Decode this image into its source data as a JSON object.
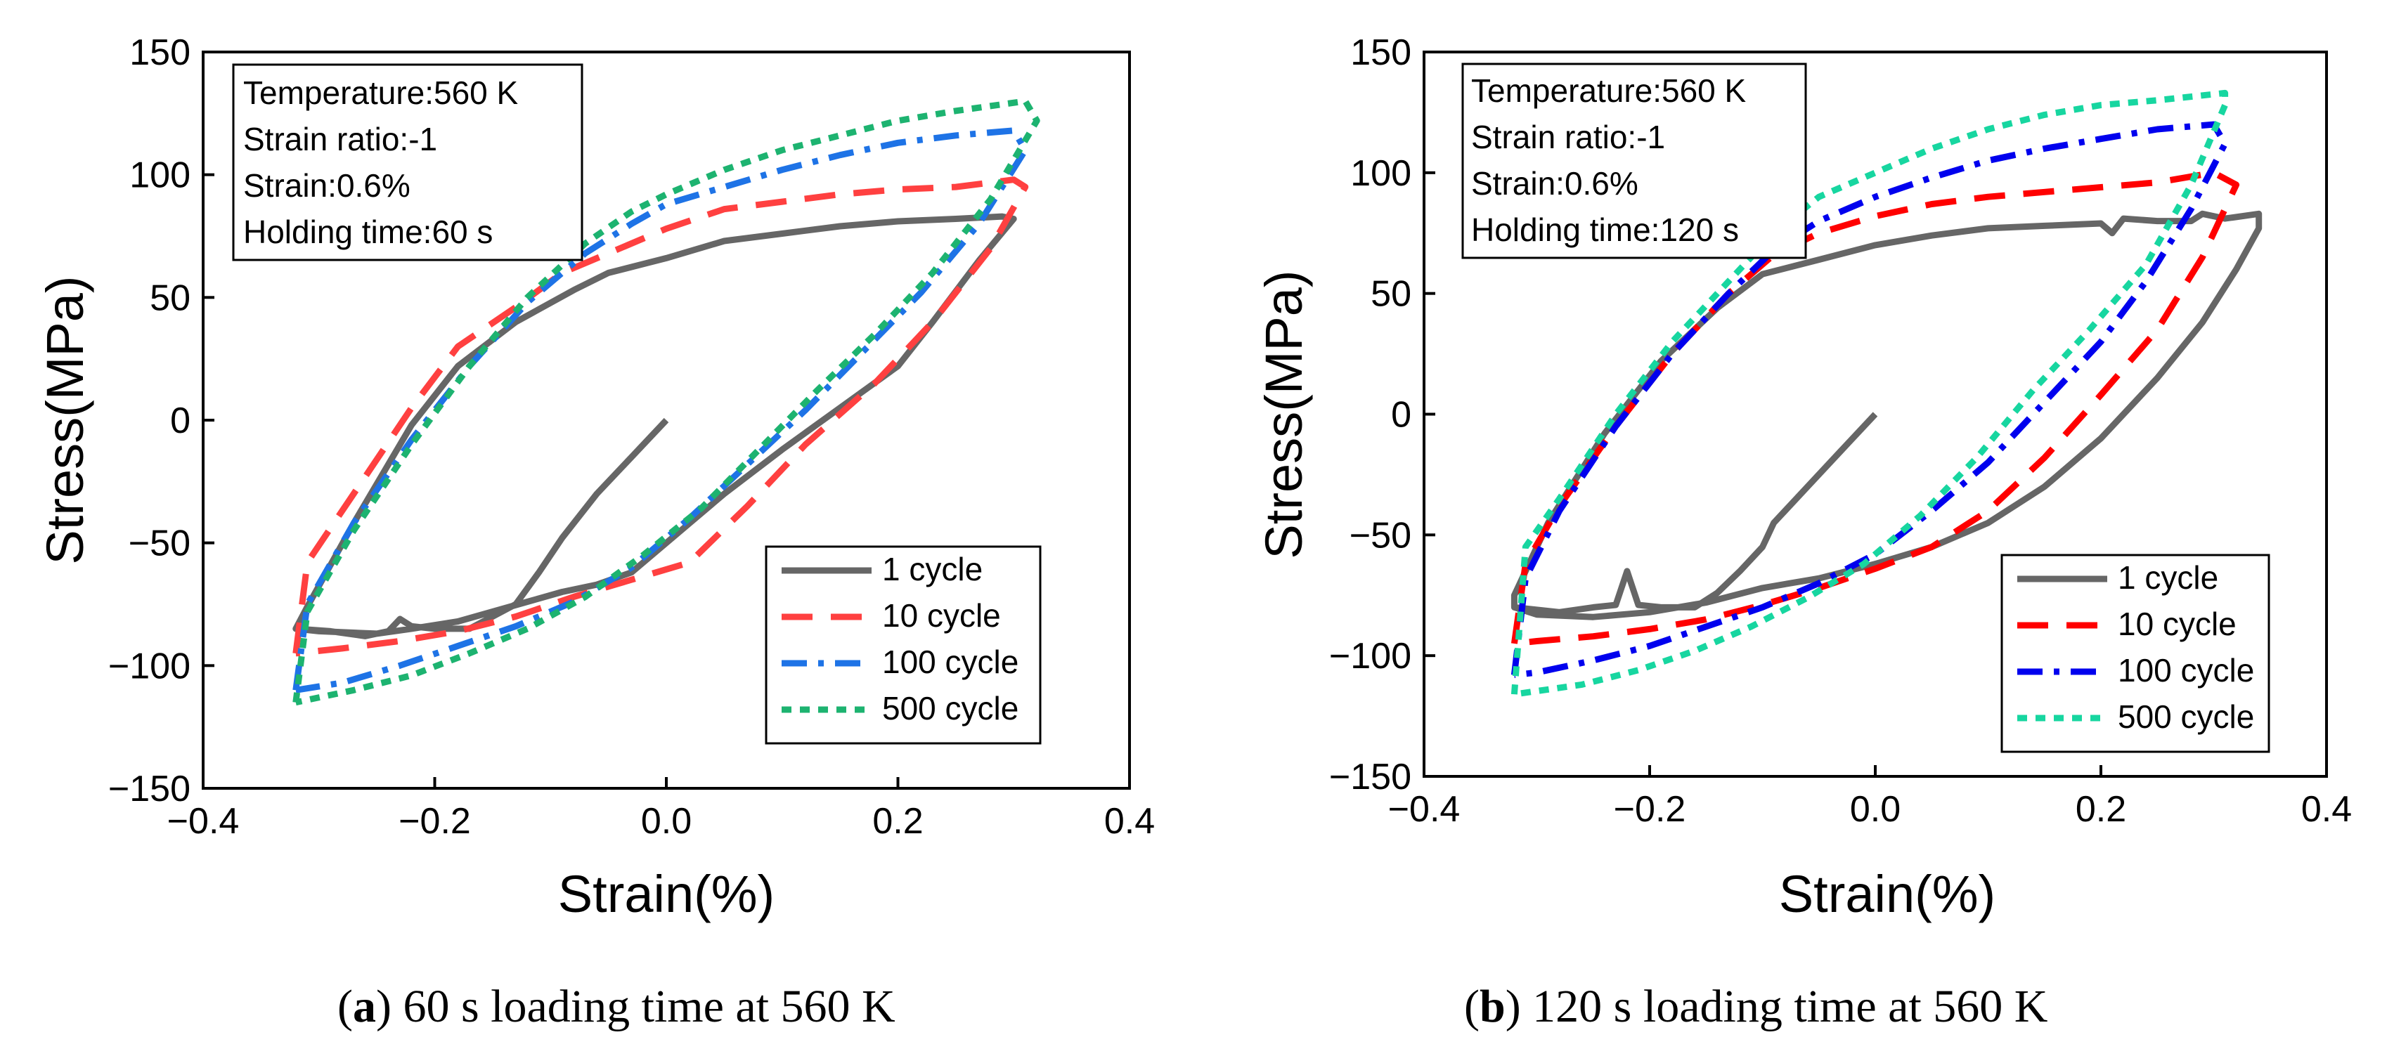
{
  "chart_data": [
    {
      "type": "line",
      "panel": "a",
      "title": "",
      "xlabel": "Strain(%)",
      "ylabel": "Stress(MPa)",
      "xlim": [
        -0.4,
        0.4
      ],
      "ylim": [
        -150,
        150
      ],
      "xticks": [
        -0.4,
        -0.2,
        0.0,
        0.2,
        0.4
      ],
      "yticks": [
        -150,
        -100,
        -50,
        0,
        50,
        100,
        150
      ],
      "xtick_labels": [
        "−0.4",
        "−0.2",
        "0.0",
        "0.2",
        "0.4"
      ],
      "ytick_labels": [
        "−150",
        "−100",
        "−50",
        "0",
        "50",
        "100",
        "150"
      ],
      "annotation": [
        "Temperature:560 K",
        "Strain ratio:-1",
        "Strain:0.6%",
        "Holding time:60 s"
      ],
      "legend_position": "bottom-right",
      "series": [
        {
          "name": "1 cycle",
          "color": "#666666",
          "dash": "solid",
          "x": [
            0.0,
            -0.03,
            -0.06,
            -0.09,
            -0.11,
            -0.13,
            -0.15,
            -0.17,
            -0.2,
            -0.22,
            -0.23,
            -0.24,
            -0.26,
            -0.29,
            -0.32,
            -0.31,
            -0.27,
            -0.22,
            -0.18,
            -0.13,
            -0.08,
            -0.05,
            0.0,
            0.05,
            0.1,
            0.15,
            0.2,
            0.25,
            0.29,
            0.3,
            0.27,
            0.23,
            0.2,
            0.15,
            0.1,
            0.05,
            0.02,
            0.0,
            -0.03,
            -0.06,
            -0.09,
            -0.12,
            -0.15,
            -0.18,
            -0.22,
            -0.25,
            -0.3,
            -0.32
          ],
          "y": [
            0,
            -15,
            -30,
            -48,
            -62,
            -75,
            -80,
            -85,
            -85,
            -84,
            -81,
            -86,
            -88,
            -86,
            -85,
            -76,
            -42,
            -2,
            22,
            40,
            53,
            60,
            66,
            73,
            76,
            79,
            81,
            82,
            83,
            82,
            65,
            40,
            22,
            5,
            -12,
            -30,
            -42,
            -50,
            -62,
            -67,
            -70,
            -74,
            -78,
            -82,
            -85,
            -87,
            -86,
            -85
          ]
        },
        {
          "name": "10 cycle",
          "color": "#ff4040",
          "dash": "long",
          "x": [
            -0.32,
            -0.31,
            -0.27,
            -0.22,
            -0.18,
            -0.13,
            -0.09,
            -0.05,
            0.0,
            0.05,
            0.1,
            0.15,
            0.2,
            0.25,
            0.3,
            0.31,
            0.28,
            0.23,
            0.18,
            0.12,
            0.07,
            0.02,
            -0.03,
            -0.08,
            -0.13,
            -0.18,
            -0.23,
            -0.28,
            -0.32
          ],
          "y": [
            -95,
            -58,
            -30,
            5,
            30,
            46,
            60,
            68,
            78,
            86,
            89,
            92,
            94,
            95,
            98,
            95,
            70,
            40,
            15,
            -10,
            -35,
            -58,
            -65,
            -72,
            -80,
            -86,
            -90,
            -93,
            -95
          ]
        },
        {
          "name": "100 cycle",
          "color": "#1e73e6",
          "dash": "dashdot",
          "x": [
            -0.32,
            -0.31,
            -0.27,
            -0.22,
            -0.17,
            -0.12,
            -0.07,
            -0.03,
            0.0,
            0.05,
            0.1,
            0.15,
            0.2,
            0.25,
            0.3,
            0.31,
            0.27,
            0.22,
            0.17,
            0.12,
            0.07,
            0.02,
            -0.03,
            -0.08,
            -0.13,
            -0.18,
            -0.23,
            -0.28,
            -0.32
          ],
          "y": [
            -110,
            -75,
            -42,
            -8,
            22,
            48,
            68,
            80,
            88,
            95,
            102,
            108,
            113,
            116,
            118,
            110,
            80,
            52,
            28,
            4,
            -18,
            -40,
            -60,
            -74,
            -84,
            -92,
            -100,
            -107,
            -110
          ]
        },
        {
          "name": "500 cycle",
          "color": "#1db370",
          "dash": "dotted",
          "x": [
            -0.32,
            -0.31,
            -0.27,
            -0.22,
            -0.17,
            -0.12,
            -0.07,
            -0.03,
            0.0,
            0.05,
            0.1,
            0.15,
            0.2,
            0.25,
            0.31,
            0.32,
            0.28,
            0.23,
            0.18,
            0.13,
            0.08,
            0.03,
            -0.02,
            -0.07,
            -0.12,
            -0.17,
            -0.22,
            -0.27,
            -0.32
          ],
          "y": [
            -115,
            -78,
            -45,
            -10,
            22,
            50,
            72,
            85,
            92,
            102,
            110,
            116,
            122,
            126,
            130,
            122,
            90,
            60,
            35,
            12,
            -12,
            -36,
            -55,
            -72,
            -85,
            -95,
            -104,
            -110,
            -115
          ]
        }
      ]
    },
    {
      "type": "line",
      "panel": "b",
      "title": "",
      "xlabel": "Strain(%)",
      "ylabel": "Stress(MPa)",
      "xlim": [
        -0.4,
        0.4
      ],
      "ylim": [
        -150,
        150
      ],
      "xticks": [
        -0.4,
        -0.2,
        0.0,
        0.2,
        0.4
      ],
      "yticks": [
        -150,
        -100,
        -50,
        0,
        50,
        100,
        150
      ],
      "xtick_labels": [
        "−0.4",
        "−0.2",
        "0.0",
        "0.2",
        "0.4"
      ],
      "ytick_labels": [
        "−150",
        "−100",
        "−50",
        "0",
        "50",
        "100",
        "150"
      ],
      "annotation": [
        "Temperature:560 K",
        "Strain ratio:-1",
        "Strain:0.6%",
        "Holding time:120 s"
      ],
      "legend_position": "bottom-right",
      "series": [
        {
          "name": "1 cycle",
          "color": "#666666",
          "dash": "solid",
          "x": [
            0.0,
            -0.03,
            -0.06,
            -0.09,
            -0.1,
            -0.12,
            -0.14,
            -0.16,
            -0.19,
            -0.21,
            -0.22,
            -0.23,
            -0.25,
            -0.28,
            -0.32,
            -0.32,
            -0.29,
            -0.24,
            -0.19,
            -0.14,
            -0.1,
            -0.05,
            0.0,
            0.05,
            0.1,
            0.15,
            0.2,
            0.21,
            0.22,
            0.25,
            0.28,
            0.29,
            0.31,
            0.34,
            0.34,
            0.32,
            0.29,
            0.25,
            0.2,
            0.15,
            0.1,
            0.05,
            0.0,
            -0.05,
            -0.1,
            -0.15,
            -0.2,
            -0.25,
            -0.3,
            -0.32
          ],
          "y": [
            0,
            -15,
            -30,
            -45,
            -55,
            -65,
            -74,
            -80,
            -80,
            -79,
            -65,
            -79,
            -80,
            -82,
            -80,
            -75,
            -45,
            -8,
            22,
            44,
            58,
            64,
            70,
            74,
            77,
            78,
            79,
            75,
            81,
            80,
            80,
            83,
            81,
            83,
            77,
            60,
            38,
            15,
            -10,
            -30,
            -45,
            -55,
            -62,
            -68,
            -72,
            -78,
            -82,
            -84,
            -83,
            -80
          ]
        },
        {
          "name": "10 cycle",
          "color": "#ff0000",
          "dash": "long",
          "x": [
            -0.32,
            -0.31,
            -0.28,
            -0.23,
            -0.18,
            -0.13,
            -0.09,
            -0.05,
            0.0,
            0.05,
            0.1,
            0.15,
            0.2,
            0.25,
            0.3,
            0.32,
            0.29,
            0.25,
            0.2,
            0.15,
            0.1,
            0.05,
            0.0,
            -0.05,
            -0.1,
            -0.15,
            -0.2,
            -0.25,
            -0.3,
            -0.32
          ],
          "y": [
            -95,
            -62,
            -38,
            -5,
            25,
            50,
            66,
            75,
            82,
            87,
            90,
            92,
            94,
            96,
            100,
            95,
            65,
            35,
            8,
            -18,
            -40,
            -55,
            -64,
            -72,
            -79,
            -85,
            -89,
            -92,
            -94,
            -95
          ]
        },
        {
          "name": "100 cycle",
          "color": "#0000ee",
          "dash": "dashdot",
          "x": [
            -0.32,
            -0.31,
            -0.28,
            -0.23,
            -0.18,
            -0.13,
            -0.09,
            -0.05,
            0.0,
            0.05,
            0.1,
            0.15,
            0.2,
            0.25,
            0.3,
            0.31,
            0.28,
            0.24,
            0.2,
            0.15,
            0.1,
            0.05,
            0.0,
            -0.05,
            -0.1,
            -0.15,
            -0.2,
            -0.25,
            -0.3,
            -0.32
          ],
          "y": [
            -108,
            -68,
            -40,
            -5,
            25,
            50,
            68,
            80,
            90,
            98,
            105,
            110,
            114,
            118,
            120,
            112,
            85,
            55,
            30,
            5,
            -20,
            -40,
            -58,
            -70,
            -80,
            -88,
            -96,
            -102,
            -107,
            -108
          ]
        },
        {
          "name": "500 cycle",
          "color": "#17d6a0",
          "dash": "dotted",
          "x": [
            -0.32,
            -0.31,
            -0.28,
            -0.23,
            -0.18,
            -0.13,
            -0.09,
            -0.05,
            0.0,
            0.05,
            0.1,
            0.15,
            0.2,
            0.25,
            0.31,
            0.31,
            0.28,
            0.24,
            0.19,
            0.14,
            0.09,
            0.04,
            -0.01,
            -0.06,
            -0.11,
            -0.16,
            -0.21,
            -0.26,
            -0.32
          ],
          "y": [
            -116,
            -55,
            -35,
            0,
            30,
            55,
            75,
            90,
            100,
            110,
            118,
            124,
            128,
            130,
            133,
            128,
            95,
            62,
            35,
            10,
            -18,
            -42,
            -62,
            -76,
            -88,
            -98,
            -106,
            -112,
            -116
          ]
        }
      ]
    }
  ],
  "captions": [
    {
      "label": "a",
      "text": ") 60 s loading time at 560 K"
    },
    {
      "label": "b",
      "text": ") 120 s loading time at 560 K"
    }
  ]
}
